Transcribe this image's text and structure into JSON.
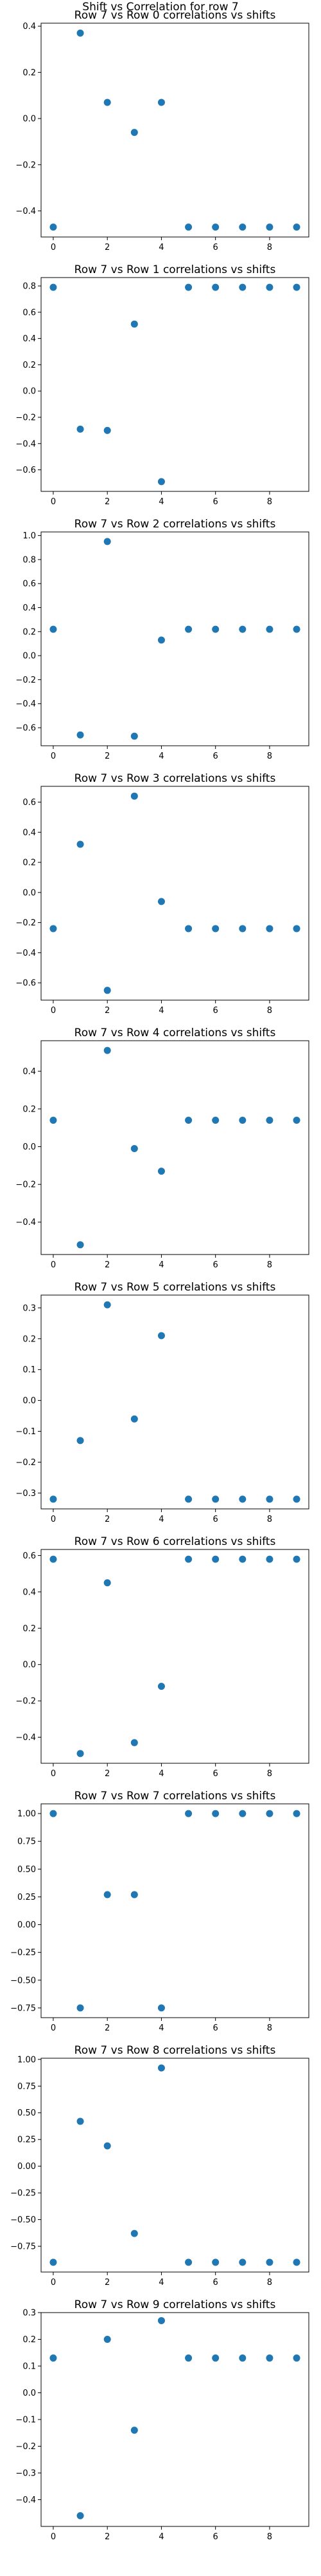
{
  "figure_title": "Shift vs Correlation for row 7",
  "colors": {
    "marker": "#1f77b4",
    "axes": "#000000",
    "text": "#000000"
  },
  "chart_data": [
    {
      "type": "scatter",
      "title": "Row 7 vs Row 0 correlations vs shifts",
      "x": [
        0,
        1,
        2,
        3,
        4,
        5,
        6,
        7,
        8,
        9
      ],
      "y": [
        -0.47,
        0.37,
        0.07,
        -0.06,
        0.07,
        -0.47,
        -0.47,
        -0.47,
        -0.47,
        -0.47
      ],
      "xlim": [
        -0.45,
        9.45
      ],
      "ylim": [
        -0.513,
        0.413
      ],
      "xticks": [
        0,
        2,
        4,
        6,
        8
      ],
      "yticks": [
        -0.4,
        -0.2,
        0.0,
        0.2,
        0.4
      ],
      "ytick_labels": [
        "−0.4",
        "−0.2",
        "0.0",
        "0.2",
        "0.4"
      ]
    },
    {
      "type": "scatter",
      "title": "Row 7 vs Row 1 correlations vs shifts",
      "x": [
        0,
        1,
        2,
        3,
        4,
        5,
        6,
        7,
        8,
        9
      ],
      "y": [
        0.79,
        -0.29,
        -0.3,
        0.51,
        -0.69,
        0.79,
        0.79,
        0.79,
        0.79,
        0.79
      ],
      "xlim": [
        -0.45,
        9.45
      ],
      "ylim": [
        -0.764,
        0.864
      ],
      "xticks": [
        0,
        2,
        4,
        6,
        8
      ],
      "yticks": [
        -0.6,
        -0.4,
        -0.2,
        0.0,
        0.2,
        0.4,
        0.6,
        0.8
      ],
      "ytick_labels": [
        "−0.6",
        "−0.4",
        "−0.2",
        "0.0",
        "0.2",
        "0.4",
        "0.6",
        "0.8"
      ]
    },
    {
      "type": "scatter",
      "title": "Row 7 vs Row 2 correlations vs shifts",
      "x": [
        0,
        1,
        2,
        3,
        4,
        5,
        6,
        7,
        8,
        9
      ],
      "y": [
        0.22,
        -0.66,
        0.95,
        -0.67,
        0.13,
        0.22,
        0.22,
        0.22,
        0.22,
        0.22
      ],
      "xlim": [
        -0.45,
        9.45
      ],
      "ylim": [
        -0.75,
        1.03
      ],
      "xticks": [
        0,
        2,
        4,
        6,
        8
      ],
      "yticks": [
        -0.6,
        -0.4,
        -0.2,
        0.0,
        0.2,
        0.4,
        0.6,
        0.8,
        1.0
      ],
      "ytick_labels": [
        "−0.6",
        "−0.4",
        "−0.2",
        "0.0",
        "0.2",
        "0.4",
        "0.6",
        "0.8",
        "1.0"
      ]
    },
    {
      "type": "scatter",
      "title": "Row 7 vs Row 3 correlations vs shifts",
      "x": [
        0,
        1,
        2,
        3,
        4,
        5,
        6,
        7,
        8,
        9
      ],
      "y": [
        -0.24,
        0.32,
        -0.65,
        0.64,
        -0.06,
        -0.24,
        -0.24,
        -0.24,
        -0.24,
        -0.24
      ],
      "xlim": [
        -0.45,
        9.45
      ],
      "ylim": [
        -0.715,
        0.705
      ],
      "xticks": [
        0,
        2,
        4,
        6,
        8
      ],
      "yticks": [
        -0.6,
        -0.4,
        -0.2,
        0.0,
        0.2,
        0.4,
        0.6
      ],
      "ytick_labels": [
        "−0.6",
        "−0.4",
        "−0.2",
        "0.0",
        "0.2",
        "0.4",
        "0.6"
      ]
    },
    {
      "type": "scatter",
      "title": "Row 7 vs Row 4 correlations vs shifts",
      "x": [
        0,
        1,
        2,
        3,
        4,
        5,
        6,
        7,
        8,
        9
      ],
      "y": [
        0.14,
        -0.52,
        0.51,
        -0.01,
        -0.13,
        0.14,
        0.14,
        0.14,
        0.14,
        0.14
      ],
      "xlim": [
        -0.45,
        9.45
      ],
      "ylim": [
        -0.5715,
        0.5615
      ],
      "xticks": [
        0,
        2,
        4,
        6,
        8
      ],
      "yticks": [
        -0.4,
        -0.2,
        0.0,
        0.2,
        0.4
      ],
      "ytick_labels": [
        "−0.4",
        "−0.2",
        "0.0",
        "0.2",
        "0.4"
      ]
    },
    {
      "type": "scatter",
      "title": "Row 7 vs Row 5 correlations vs shifts",
      "x": [
        0,
        1,
        2,
        3,
        4,
        5,
        6,
        7,
        8,
        9
      ],
      "y": [
        -0.32,
        -0.13,
        0.31,
        -0.06,
        0.21,
        -0.32,
        -0.32,
        -0.32,
        -0.32,
        -0.32
      ],
      "xlim": [
        -0.45,
        9.45
      ],
      "ylim": [
        -0.3515,
        0.3415
      ],
      "xticks": [
        0,
        2,
        4,
        6,
        8
      ],
      "yticks": [
        -0.3,
        -0.2,
        -0.1,
        0.0,
        0.1,
        0.2,
        0.3
      ],
      "ytick_labels": [
        "−0.3",
        "−0.2",
        "−0.1",
        "0.0",
        "0.1",
        "0.2",
        "0.3"
      ]
    },
    {
      "type": "scatter",
      "title": "Row 7 vs Row 6 correlations vs shifts",
      "x": [
        0,
        1,
        2,
        3,
        4,
        5,
        6,
        7,
        8,
        9
      ],
      "y": [
        0.58,
        -0.49,
        0.45,
        -0.43,
        -0.12,
        0.58,
        0.58,
        0.58,
        0.58,
        0.58
      ],
      "xlim": [
        -0.45,
        9.45
      ],
      "ylim": [
        -0.5435,
        0.6335
      ],
      "xticks": [
        0,
        2,
        4,
        6,
        8
      ],
      "yticks": [
        -0.4,
        -0.2,
        0.0,
        0.2,
        0.4,
        0.6
      ],
      "ytick_labels": [
        "−0.4",
        "−0.2",
        "0.0",
        "0.2",
        "0.4",
        "0.6"
      ]
    },
    {
      "type": "scatter",
      "title": "Row 7 vs Row 7 correlations vs shifts",
      "x": [
        0,
        1,
        2,
        3,
        4,
        5,
        6,
        7,
        8,
        9
      ],
      "y": [
        1.0,
        -0.75,
        0.27,
        0.27,
        -0.75,
        1.0,
        1.0,
        1.0,
        1.0,
        1.0
      ],
      "xlim": [
        -0.45,
        9.45
      ],
      "ylim": [
        -0.8375,
        1.0875
      ],
      "xticks": [
        0,
        2,
        4,
        6,
        8
      ],
      "yticks": [
        -0.75,
        -0.5,
        -0.25,
        0.0,
        0.25,
        0.5,
        0.75,
        1.0
      ],
      "ytick_labels": [
        "−0.75",
        "−0.50",
        "−0.25",
        "0.00",
        "0.25",
        "0.50",
        "0.75",
        "1.00"
      ]
    },
    {
      "type": "scatter",
      "title": "Row 7 vs Row 8 correlations vs shifts",
      "x": [
        0,
        1,
        2,
        3,
        4,
        5,
        6,
        7,
        8,
        9
      ],
      "y": [
        -0.9,
        0.42,
        0.19,
        -0.63,
        0.92,
        -0.9,
        -0.9,
        -0.9,
        -0.9,
        -0.9
      ],
      "xlim": [
        -0.45,
        9.45
      ],
      "ylim": [
        -0.991,
        1.011
      ],
      "xticks": [
        0,
        2,
        4,
        6,
        8
      ],
      "yticks": [
        -0.75,
        -0.5,
        -0.25,
        0.0,
        0.25,
        0.5,
        0.75,
        1.0
      ],
      "ytick_labels": [
        "−0.75",
        "−0.50",
        "−0.25",
        "0.00",
        "0.25",
        "0.50",
        "0.75",
        "1.00"
      ]
    },
    {
      "type": "scatter",
      "title": "Row 7 vs Row 9 correlations vs shifts",
      "x": [
        0,
        1,
        2,
        3,
        4,
        5,
        6,
        7,
        8,
        9
      ],
      "y": [
        0.13,
        -0.46,
        0.2,
        -0.14,
        0.27,
        0.13,
        0.13,
        0.13,
        0.13,
        0.13
      ],
      "xlim": [
        -0.45,
        9.45
      ],
      "ylim": [
        -0.5,
        0.3
      ],
      "xticks": [
        0,
        2,
        4,
        6,
        8
      ],
      "yticks": [
        -0.4,
        -0.3,
        -0.2,
        -0.1,
        0.0,
        0.1,
        0.2,
        0.3
      ],
      "ytick_labels": [
        "−0.4",
        "−0.3",
        "−0.2",
        "−0.1",
        "0.0",
        "0.1",
        "0.2",
        "0.3"
      ]
    }
  ]
}
